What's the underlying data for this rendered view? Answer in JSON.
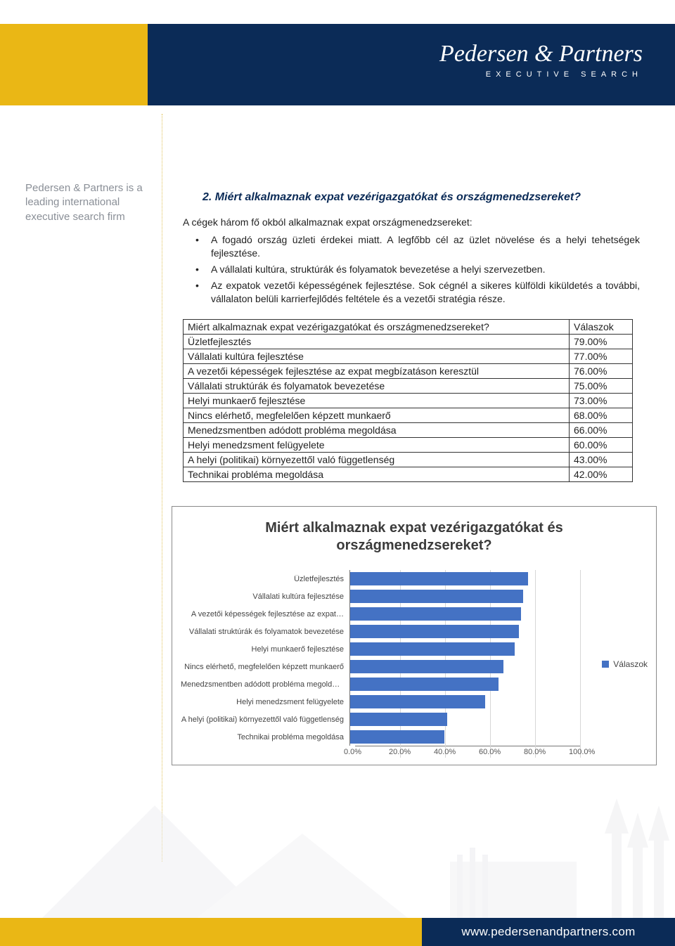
{
  "brand": {
    "logo_main": "Pedersen & Partners",
    "logo_sub": "EXECUTIVE SEARCH",
    "header_gold": "#eab715",
    "header_navy": "#0b2b57"
  },
  "sidebar": {
    "tagline": "Pedersen & Partners is a leading international executive search firm"
  },
  "section": {
    "title": "2.  Miért alkalmaznak expat vezérigazgatókat és országmenedzsereket?",
    "intro": "A cégek három fő okból alkalmaznak expat országmenedzsereket:",
    "bullets": [
      "A fogadó ország üzleti érdekei miatt. A legfőbb cél az üzlet növelése és a helyi tehetségek fejlesztése.",
      "A vállalati kultúra, struktúrák és folyamatok bevezetése a helyi szervezetben.",
      "Az expatok vezetői képességének fejlesztése. Sok cégnél a sikeres külföldi kiküldetés a további, vállalaton belüli karrierfejlődés feltétele és a vezetői stratégia része."
    ]
  },
  "table": {
    "header_q": "Miért alkalmaznak expat vezérigazgatókat és országmenedzsereket?",
    "header_v": "Válaszok",
    "rows": [
      {
        "label": "Üzletfejlesztés",
        "value": "79.00%"
      },
      {
        "label": "Vállalati kultúra fejlesztése",
        "value": "77.00%"
      },
      {
        "label": "A vezetői képességek fejlesztése az expat megbízatáson keresztül",
        "value": "76.00%"
      },
      {
        "label": "Vállalati struktúrák és folyamatok bevezetése",
        "value": "75.00%"
      },
      {
        "label": "Helyi munkaerő fejlesztése",
        "value": "73.00%"
      },
      {
        "label": "Nincs elérhető, megfelelően képzett munkaerő",
        "value": "68.00%"
      },
      {
        "label": "Menedzsmentben adódott probléma megoldása",
        "value": "66.00%"
      },
      {
        "label": "Helyi menedzsment felügyelete",
        "value": "60.00%"
      },
      {
        "label": "A helyi (politikai) környezettől való függetlenség",
        "value": "43.00%"
      },
      {
        "label": "Technikai probléma megoldása",
        "value": "42.00%"
      }
    ]
  },
  "chart": {
    "type": "bar-horizontal",
    "title_line1": "Miért alkalmaznak expat vezérigazgatókat és",
    "title_line2": "országmenedzsereket?",
    "legend_label": "Válaszok",
    "bar_color": "#4472c4",
    "grid_color": "#d6d6d6",
    "axis_color": "#777777",
    "background_color": "#ffffff",
    "label_fontsize": 11,
    "title_fontsize": 20,
    "xlim": [
      0,
      100
    ],
    "xtick_step": 20,
    "xticks": [
      "0.0%",
      "20.0%",
      "40.0%",
      "60.0%",
      "80.0%",
      "100.0%"
    ],
    "categories": [
      "Üzletfejlesztés",
      "Vállalati kultúra fejlesztése",
      "A vezetői képességek fejlesztése az expat…",
      "Vállalati struktúrák és folyamatok bevezetése",
      "Helyi munkaerő fejlesztése",
      "Nincs elérhető, megfelelően képzett munkaerő",
      "Menedzsmentben adódott probléma megoldása",
      "Helyi menedzsment felügyelete",
      "A helyi (politikai) környezettől való függetlenség",
      "Technikai probléma megoldása"
    ],
    "values": [
      79,
      77,
      76,
      75,
      73,
      68,
      66,
      60,
      43,
      42
    ]
  },
  "footer": {
    "url": "www.pedersenandpartners.com"
  }
}
